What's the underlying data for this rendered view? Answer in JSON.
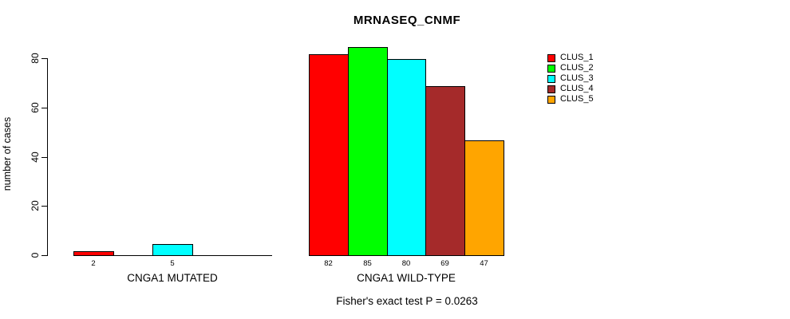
{
  "title": "MRNASEQ_CNMF",
  "footer": "Fisher's exact test P = 0.0263",
  "chart_data": {
    "type": "bar",
    "title": "MRNASEQ_CNMF",
    "xlabel": "",
    "ylabel": "number of cases",
    "ylim": [
      0,
      88
    ],
    "yticks": [
      0,
      20,
      40,
      60,
      80
    ],
    "grid": false,
    "legend_position": "right-outside-top",
    "categories": [
      "CNGA1 MUTATED",
      "CNGA1 WILD-TYPE"
    ],
    "series": [
      {
        "name": "CLUS_1",
        "color": "#FF0000",
        "values": [
          2,
          82
        ]
      },
      {
        "name": "CLUS_2",
        "color": "#00FF00",
        "values": [
          0,
          85
        ]
      },
      {
        "name": "CLUS_3",
        "color": "#00FFFF",
        "values": [
          5,
          80
        ]
      },
      {
        "name": "CLUS_4",
        "color": "#A52A2A",
        "values": [
          0,
          69
        ]
      },
      {
        "name": "CLUS_5",
        "color": "#FFA500",
        "values": [
          0,
          47
        ]
      }
    ],
    "bar_value_labels_shown": [
      "2",
      "5",
      "82",
      "85",
      "80",
      "69",
      "47"
    ],
    "zero_height_bars_drawn_as_baseline": true,
    "annotation": "Fisher's exact test P = 0.0263"
  }
}
